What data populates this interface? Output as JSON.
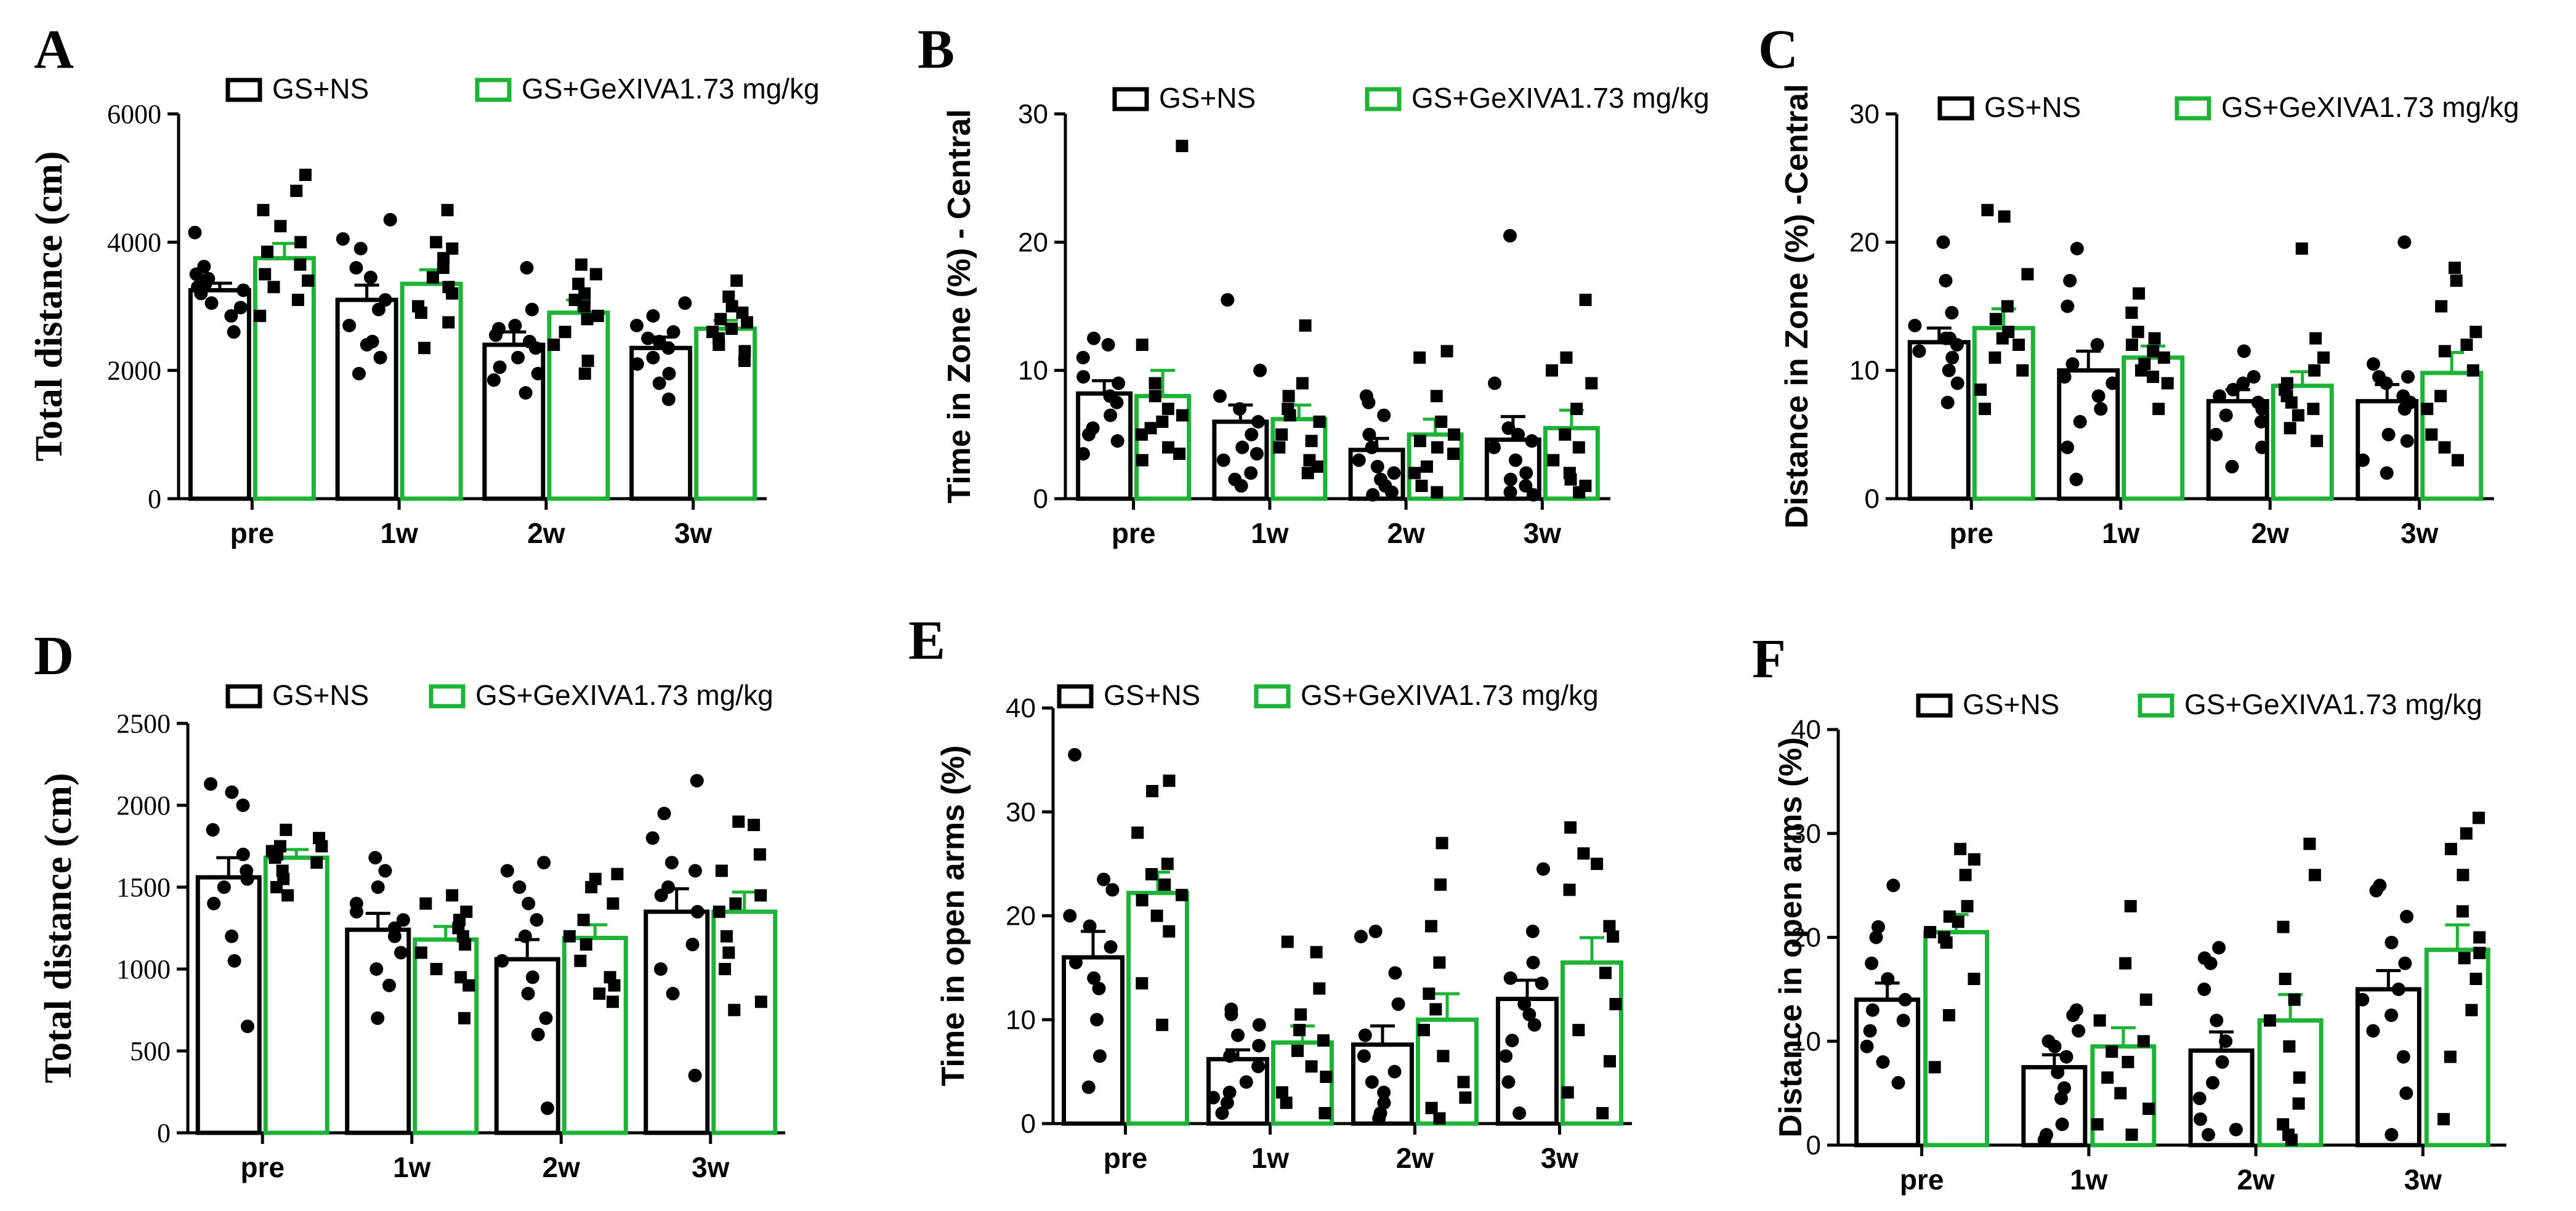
{
  "colors": {
    "series1": "#000000",
    "series2": "#1DB336"
  },
  "legend_names": [
    "GS+NS",
    "GS+GeXIVA1.73 mg/kg"
  ],
  "chart_data": [
    {
      "panel": "A",
      "type": "bar",
      "categories": [
        "pre",
        "1w",
        "2w",
        "3w"
      ],
      "ylabel": "Total distance (cm)",
      "ylim": [
        0,
        6000
      ],
      "yticks": [
        0,
        2000,
        4000,
        6000
      ],
      "series": [
        {
          "name": "GS+NS",
          "values": [
            3250,
            3100,
            2400,
            2350
          ],
          "errors": [
            110,
            230,
            200,
            170
          ],
          "points": [
            [
              4150,
              3620,
              3500,
              3430,
              3350,
              3300,
              3250,
              3200,
              3050,
              2980,
              2850,
              2600
            ],
            [
              4350,
              4050,
              3900,
              3600,
              3450,
              3100,
              2950,
              2700,
              2450,
              2200,
              1950,
              2400
            ],
            [
              3600,
              2950,
              2700,
              2550,
              2450,
              2350,
              2200,
              2050,
              1950,
              1850,
              1650,
              2650
            ],
            [
              3050,
              2850,
              2700,
              2600,
              2500,
              2350,
              2200,
              2100,
              1950,
              1800,
              1550,
              2450
            ]
          ]
        },
        {
          "name": "GS+GeXIVA1.73 mg/kg",
          "values": [
            3750,
            3350,
            2900,
            2650
          ],
          "errors": [
            230,
            220,
            200,
            130
          ],
          "points": [
            [
              5050,
              4800,
              4500,
              4250,
              4000,
              3850,
              3650,
              3500,
              3400,
              3300,
              3100,
              2850
            ],
            [
              4500,
              4000,
              3900,
              3750,
              3600,
              3450,
              3300,
              3200,
              3000,
              2900,
              2750,
              2350
            ],
            [
              3650,
              3500,
              3350,
              3200,
              3100,
              3000,
              2850,
              2800,
              2600,
              2400,
              2150,
              1950
            ],
            [
              3400,
              3150,
              3000,
              2900,
              2800,
              2750,
              2650,
              2600,
              2500,
              2400,
              2300,
              2150
            ]
          ]
        }
      ]
    },
    {
      "panel": "B",
      "type": "bar",
      "categories": [
        "pre",
        "1w",
        "2w",
        "3w"
      ],
      "ylabel": "Time in Zone (%) - Central",
      "ylim": [
        0,
        30
      ],
      "yticks": [
        0,
        10,
        20,
        30
      ],
      "series": [
        {
          "name": "GS+NS",
          "values": [
            8.2,
            6.0,
            3.8,
            4.6
          ],
          "errors": [
            1.0,
            1.3,
            0.9,
            1.8
          ],
          "points": [
            [
              12.5,
              12.0,
              11.0,
              9.5,
              9.0,
              8.0,
              7.5,
              6.5,
              5.5,
              4.5,
              3.5,
              5.0
            ],
            [
              15.5,
              10.0,
              8.0,
              7.0,
              6.0,
              5.0,
              4.0,
              3.0,
              2.0,
              1.5,
              1.0,
              3.5
            ],
            [
              8.0,
              7.5,
              6.5,
              5.0,
              4.0,
              3.0,
              2.0,
              1.0,
              0.5,
              0.3,
              2.5,
              1.5
            ],
            [
              20.5,
              9.0,
              5.5,
              5.0,
              4.0,
              3.0,
              2.0,
              1.5,
              1.0,
              0.5,
              0.3,
              4.5
            ]
          ]
        },
        {
          "name": "GS+GeXIVA1.73 mg/kg",
          "values": [
            8.0,
            6.2,
            5.0,
            5.5
          ],
          "errors": [
            2.0,
            1.1,
            1.2,
            1.4
          ],
          "points": [
            [
              27.5,
              12.0,
              9.0,
              8.0,
              7.0,
              6.0,
              5.5,
              5.0,
              4.0,
              3.5,
              3.0,
              6.5
            ],
            [
              13.5,
              9.0,
              8.0,
              7.0,
              6.0,
              5.0,
              4.0,
              3.0,
              2.5,
              2.0,
              4.5,
              6.5
            ],
            [
              11.5,
              11.0,
              8.0,
              6.0,
              5.0,
              4.0,
              3.5,
              2.0,
              1.0,
              0.5,
              2.5,
              4.5
            ],
            [
              15.5,
              11.0,
              10.0,
              9.0,
              7.0,
              5.0,
              3.0,
              2.0,
              1.0,
              0.5,
              1.5,
              4.0
            ]
          ]
        }
      ]
    },
    {
      "panel": "C",
      "type": "bar",
      "categories": [
        "pre",
        "1w",
        "2w",
        "3w"
      ],
      "ylabel": "Distance in Zone (%) -Central",
      "ylim": [
        0,
        30
      ],
      "yticks": [
        0,
        10,
        20,
        30
      ],
      "series": [
        {
          "name": "GS+NS",
          "values": [
            12.2,
            10.0,
            7.6,
            7.6
          ],
          "errors": [
            1.1,
            1.5,
            0.9,
            1.3
          ],
          "points": [
            [
              20.0,
              17.0,
              14.5,
              13.5,
              12.5,
              12.0,
              11.5,
              11.0,
              10.0,
              9.0,
              7.5,
              12.5
            ],
            [
              19.5,
              17.0,
              15.0,
              10.5,
              9.5,
              9.0,
              8.0,
              7.0,
              6.0,
              4.0,
              1.5,
              12.0
            ],
            [
              11.5,
              9.5,
              8.5,
              8.0,
              7.5,
              7.0,
              6.5,
              6.0,
              5.0,
              4.0,
              2.5,
              9.0
            ],
            [
              20.0,
              10.5,
              9.5,
              9.0,
              8.0,
              7.5,
              7.0,
              5.0,
              4.5,
              3.0,
              2.0,
              9.5
            ]
          ]
        },
        {
          "name": "GS+GeXIVA1.73 mg/kg",
          "values": [
            13.3,
            11.0,
            8.8,
            9.8
          ],
          "errors": [
            1.5,
            0.9,
            1.1,
            1.6
          ],
          "points": [
            [
              22.5,
              22.0,
              17.5,
              15.0,
              14.0,
              13.0,
              12.0,
              11.0,
              10.0,
              8.5,
              7.0,
              12.5
            ],
            [
              16.0,
              14.5,
              13.0,
              12.0,
              11.5,
              11.0,
              10.5,
              10.0,
              9.5,
              9.0,
              7.0,
              12.5
            ],
            [
              19.5,
              12.5,
              10.0,
              9.0,
              8.5,
              8.0,
              7.5,
              7.0,
              6.5,
              5.5,
              4.5,
              11.0
            ],
            [
              18.0,
              17.0,
              15.0,
              13.0,
              12.0,
              10.0,
              8.0,
              7.0,
              5.0,
              4.0,
              3.0,
              11.5
            ]
          ]
        }
      ]
    },
    {
      "panel": "D",
      "type": "bar",
      "categories": [
        "pre",
        "1w",
        "2w",
        "3w"
      ],
      "ylabel": "Total distance (cm)",
      "ylim": [
        0,
        2500
      ],
      "yticks": [
        0,
        500,
        1000,
        1500,
        2000,
        2500
      ],
      "series": [
        {
          "name": "GS+NS",
          "values": [
            1560,
            1240,
            1060,
            1350
          ],
          "errors": [
            120,
            100,
            120,
            140
          ],
          "points": [
            [
              2130,
              2080,
              2000,
              1850,
              1700,
              1600,
              1550,
              1500,
              1400,
              1200,
              1050,
              650
            ],
            [
              1680,
              1600,
              1500,
              1400,
              1350,
              1300,
              1250,
              1100,
              1000,
              900,
              700,
              1200
            ],
            [
              1650,
              1600,
              1400,
              1300,
              1200,
              1050,
              950,
              850,
              700,
              600,
              150,
              1500
            ],
            [
              2150,
              1950,
              1800,
              1650,
              1500,
              1450,
              1350,
              1150,
              1000,
              850,
              350,
              1600
            ]
          ]
        },
        {
          "name": "GS+GeXIVA1.73 mg/kg",
          "values": [
            1680,
            1180,
            1190,
            1350
          ],
          "errors": [
            50,
            80,
            80,
            120
          ],
          "points": [
            [
              1850,
              1800,
              1750,
              1720,
              1700,
              1680,
              1650,
              1600,
              1550,
              1500,
              1450,
              1750
            ],
            [
              1450,
              1400,
              1350,
              1300,
              1250,
              1200,
              1150,
              1100,
              1000,
              950,
              900,
              700
            ],
            [
              1580,
              1550,
              1500,
              1400,
              1300,
              1200,
              1150,
              1050,
              950,
              900,
              800,
              850
            ],
            [
              1900,
              1880,
              1700,
              1600,
              1450,
              1400,
              1350,
              1200,
              1100,
              1000,
              800,
              750
            ]
          ]
        }
      ]
    },
    {
      "panel": "E",
      "type": "bar",
      "categories": [
        "pre",
        "1w",
        "2w",
        "3w"
      ],
      "ylabel": "Time in open arms (%)",
      "ylim": [
        0,
        40
      ],
      "yticks": [
        0,
        10,
        20,
        30,
        40
      ],
      "series": [
        {
          "name": "GS+NS",
          "values": [
            16.0,
            6.2,
            7.6,
            12.0
          ],
          "errors": [
            2.5,
            0.9,
            1.8,
            1.8
          ],
          "points": [
            [
              35.5,
              23.5,
              22.5,
              20.0,
              19.0,
              17.0,
              15.5,
              14.0,
              13.0,
              10.0,
              6.5,
              3.5
            ],
            [
              11.0,
              10.5,
              9.5,
              8.5,
              7.5,
              6.5,
              5.5,
              4.0,
              3.0,
              2.5,
              2.0,
              1.0
            ],
            [
              18.5,
              18.0,
              14.5,
              11.5,
              8.5,
              6.5,
              5.0,
              4.0,
              3.0,
              2.0,
              1.0,
              0.5
            ],
            [
              24.5,
              18.5,
              15.5,
              14.0,
              13.5,
              11.5,
              10.5,
              9.5,
              8.0,
              6.5,
              4.0,
              1.0
            ]
          ]
        },
        {
          "name": "GS+GeXIVA1.73 mg/kg",
          "values": [
            22.2,
            7.8,
            10.0,
            15.5
          ],
          "errors": [
            2.0,
            1.6,
            2.5,
            2.4
          ],
          "points": [
            [
              33.0,
              32.0,
              28.0,
              25.0,
              24.0,
              23.0,
              22.0,
              21.5,
              20.0,
              18.5,
              13.5,
              9.5
            ],
            [
              17.5,
              16.5,
              13.0,
              10.5,
              9.0,
              8.0,
              7.0,
              5.5,
              4.5,
              3.0,
              2.0,
              1.0
            ],
            [
              27.0,
              23.0,
              19.0,
              15.5,
              12.5,
              11.0,
              9.0,
              6.5,
              4.0,
              2.5,
              1.5,
              0.5
            ],
            [
              28.5,
              26.0,
              25.0,
              22.5,
              19.0,
              18.0,
              14.5,
              11.5,
              9.0,
              6.0,
              3.0,
              1.0
            ]
          ]
        }
      ]
    },
    {
      "panel": "F",
      "type": "bar",
      "categories": [
        "pre",
        "1w",
        "2w",
        "3w"
      ],
      "ylabel": "Distance in  open arms (%)",
      "ylim": [
        0,
        40
      ],
      "yticks": [
        0,
        10,
        20,
        30,
        40
      ],
      "series": [
        {
          "name": "GS+NS",
          "values": [
            14.0,
            7.5,
            9.1,
            15.0
          ],
          "errors": [
            1.6,
            1.2,
            1.8,
            1.8
          ],
          "points": [
            [
              25.0,
              21.0,
              20.0,
              17.5,
              16.0,
              14.0,
              13.0,
              12.0,
              11.0,
              9.5,
              8.0,
              6.0
            ],
            [
              13.0,
              12.5,
              11.0,
              10.0,
              9.5,
              8.5,
              7.0,
              5.5,
              4.5,
              2.0,
              1.0,
              0.5
            ],
            [
              19.0,
              18.0,
              17.5,
              15.0,
              12.0,
              10.0,
              8.0,
              6.0,
              4.5,
              2.5,
              1.5,
              1.0
            ],
            [
              25.0,
              24.5,
              22.0,
              19.5,
              17.5,
              15.0,
              14.0,
              12.5,
              11.0,
              8.5,
              5.0,
              1.0
            ]
          ]
        },
        {
          "name": "GS+GeXIVA1.73 mg/kg",
          "values": [
            20.5,
            9.5,
            12.0,
            18.8
          ],
          "errors": [
            1.7,
            1.8,
            2.5,
            2.4
          ],
          "points": [
            [
              28.5,
              27.5,
              26.0,
              23.0,
              22.0,
              21.5,
              20.5,
              20.0,
              19.5,
              16.0,
              12.5,
              7.5
            ],
            [
              23.0,
              17.5,
              14.0,
              12.0,
              10.0,
              9.0,
              8.0,
              6.5,
              5.0,
              3.5,
              2.0,
              1.0
            ],
            [
              29.0,
              26.0,
              21.0,
              16.0,
              14.0,
              12.0,
              9.5,
              6.5,
              4.0,
              2.0,
              1.0,
              0.5
            ],
            [
              31.5,
              30.0,
              28.5,
              26.0,
              22.5,
              20.0,
              18.5,
              18.0,
              16.0,
              13.0,
              8.5,
              2.5
            ]
          ]
        }
      ]
    }
  ]
}
